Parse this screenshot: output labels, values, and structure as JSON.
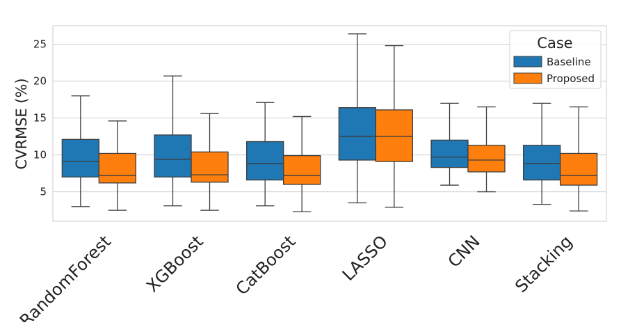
{
  "chart_data": {
    "type": "box",
    "title": "",
    "xlabel": "",
    "ylabel": "CVRMSE (%)",
    "ylim": [
      1,
      27.5
    ],
    "yticks": [
      5,
      10,
      15,
      20,
      25
    ],
    "grid": true,
    "categories": [
      "RandomForest",
      "XGBoost",
      "CatBoost",
      "LASSO",
      "CNN",
      "Stacking"
    ],
    "legend": {
      "title": "Case",
      "placement": "top-right"
    },
    "series": [
      {
        "name": "Baseline",
        "color": "#1f77b4",
        "boxes": [
          {
            "whisker_low": 3.0,
            "q1": 7.0,
            "median": 9.1,
            "q3": 12.1,
            "whisker_high": 18.0
          },
          {
            "whisker_low": 3.1,
            "q1": 7.0,
            "median": 9.4,
            "q3": 12.7,
            "whisker_high": 20.7
          },
          {
            "whisker_low": 3.1,
            "q1": 6.6,
            "median": 8.8,
            "q3": 11.8,
            "whisker_high": 17.1
          },
          {
            "whisker_low": 3.5,
            "q1": 9.3,
            "median": 12.5,
            "q3": 16.4,
            "whisker_high": 26.4
          },
          {
            "whisker_low": 5.9,
            "q1": 8.3,
            "median": 9.7,
            "q3": 12.0,
            "whisker_high": 17.0
          },
          {
            "whisker_low": 3.3,
            "q1": 6.6,
            "median": 8.8,
            "q3": 11.3,
            "whisker_high": 17.0
          }
        ]
      },
      {
        "name": "Proposed",
        "color": "#ff7f0e",
        "boxes": [
          {
            "whisker_low": 2.5,
            "q1": 6.2,
            "median": 7.2,
            "q3": 10.2,
            "whisker_high": 14.6
          },
          {
            "whisker_low": 2.5,
            "q1": 6.3,
            "median": 7.3,
            "q3": 10.4,
            "whisker_high": 15.6
          },
          {
            "whisker_low": 2.3,
            "q1": 6.0,
            "median": 7.2,
            "q3": 9.9,
            "whisker_high": 15.2
          },
          {
            "whisker_low": 2.9,
            "q1": 9.1,
            "median": 12.5,
            "q3": 16.1,
            "whisker_high": 24.8
          },
          {
            "whisker_low": 5.0,
            "q1": 7.7,
            "median": 9.3,
            "q3": 11.3,
            "whisker_high": 16.5
          },
          {
            "whisker_low": 2.4,
            "q1": 5.9,
            "median": 7.2,
            "q3": 10.2,
            "whisker_high": 16.5
          }
        ]
      }
    ]
  }
}
